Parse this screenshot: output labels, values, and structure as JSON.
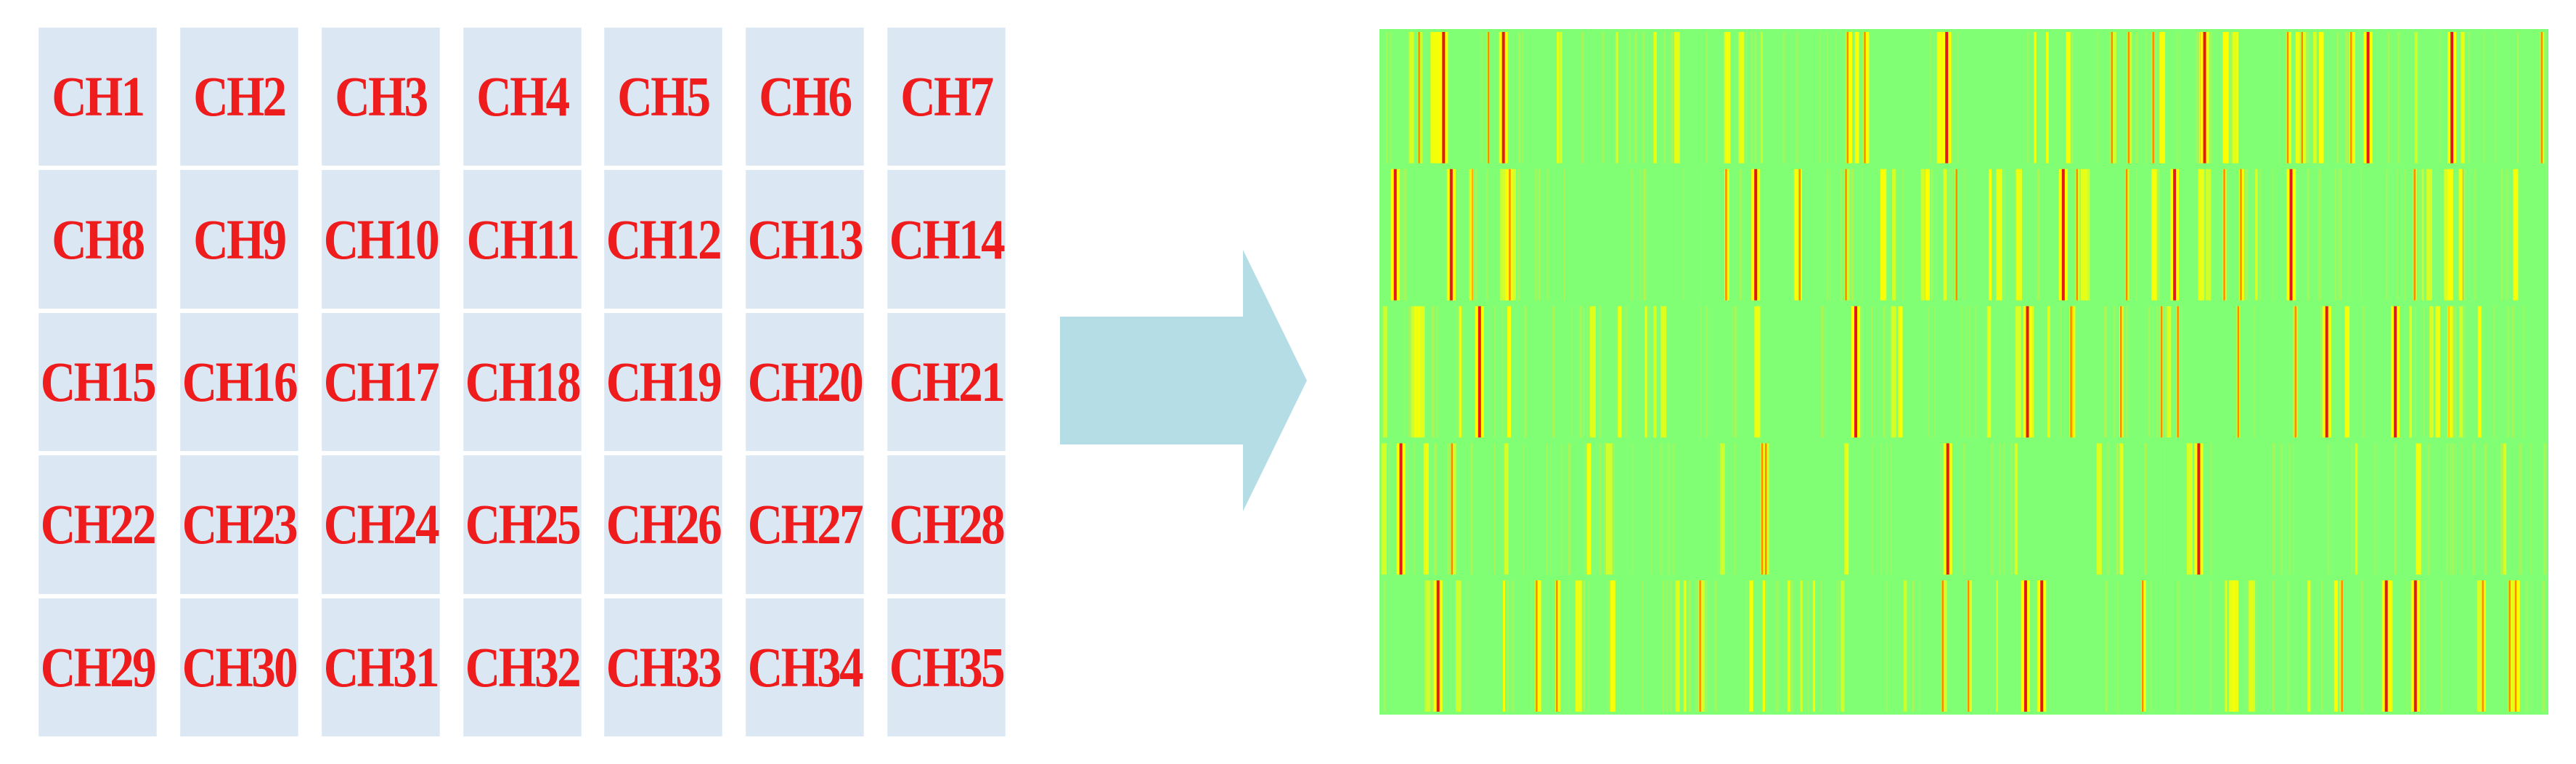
{
  "channel_grid": {
    "columns": 7,
    "rows": [
      [
        "CH1",
        "CH2",
        "CH3",
        "CH4",
        "CH5",
        "CH6",
        "CH7"
      ],
      [
        "CH8",
        "CH9",
        "CH10",
        "CH11",
        "CH12",
        "CH13",
        "CH14"
      ],
      [
        "CH15",
        "CH16",
        "CH17",
        "CH18",
        "CH19",
        "CH20",
        "CH21"
      ],
      [
        "CH22",
        "CH23",
        "CH24",
        "CH25",
        "CH26",
        "CH27",
        "CH28"
      ],
      [
        "CH29",
        "CH30",
        "CH31",
        "CH32",
        "CH33",
        "CH34",
        "CH35"
      ]
    ],
    "cell_color": "#dbe8f3",
    "text_color": "#ee1c1c"
  },
  "arrow": {
    "icon": "right-arrow-icon",
    "color": "#b5dde6"
  },
  "heatmap": {
    "bands": 5,
    "background_color": "#80ff74",
    "colors": {
      "low": "#80ff74",
      "mid": "#ffff00",
      "high": "#e01a1a"
    }
  }
}
